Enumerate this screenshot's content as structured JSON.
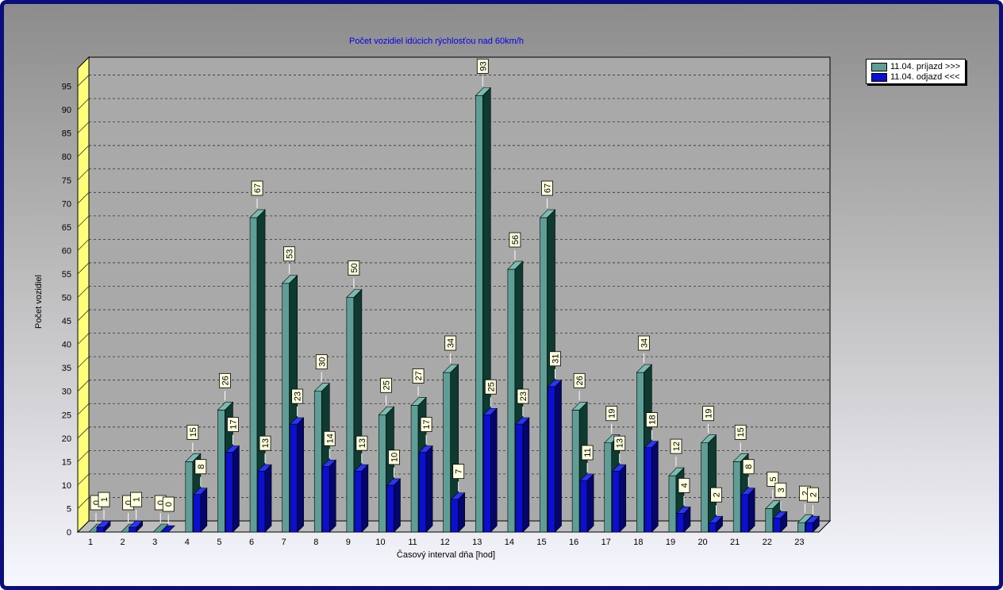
{
  "chart_data": {
    "type": "bar",
    "title": "Počet vozidiel idúcich rýchlosťou nad 60km/h",
    "xlabel": "Časový interval dňa [hod]",
    "ylabel": "Počet vozidiel",
    "ylim": [
      0,
      100
    ],
    "yticks": [
      0,
      5,
      10,
      15,
      20,
      25,
      30,
      35,
      40,
      45,
      50,
      55,
      60,
      65,
      70,
      75,
      80,
      85,
      90,
      95
    ],
    "categories": [
      "1",
      "2",
      "3",
      "4",
      "5",
      "6",
      "7",
      "8",
      "9",
      "10",
      "11",
      "12",
      "13",
      "14",
      "15",
      "16",
      "17",
      "18",
      "19",
      "20",
      "21",
      "22",
      "23"
    ],
    "series": [
      {
        "name": "11.04.  príjazd >>>",
        "color": "#5f9e96",
        "dark": "#0e3a30",
        "light": "#7bbcb2",
        "values": [
          0,
          0,
          0,
          15,
          26,
          67,
          53,
          30,
          50,
          25,
          27,
          34,
          93,
          56,
          67,
          26,
          19,
          34,
          12,
          19,
          15,
          5,
          2
        ]
      },
      {
        "name": "11.04.  odjazd <<<",
        "color": "#0a0fd0",
        "dark": "#04066a",
        "light": "#2a34ff",
        "values": [
          1,
          1,
          0,
          8,
          17,
          13,
          23,
          14,
          13,
          10,
          17,
          7,
          25,
          23,
          31,
          11,
          13,
          18,
          4,
          2,
          8,
          3,
          2
        ]
      }
    ],
    "grid": true,
    "legend_position": "top-right"
  }
}
